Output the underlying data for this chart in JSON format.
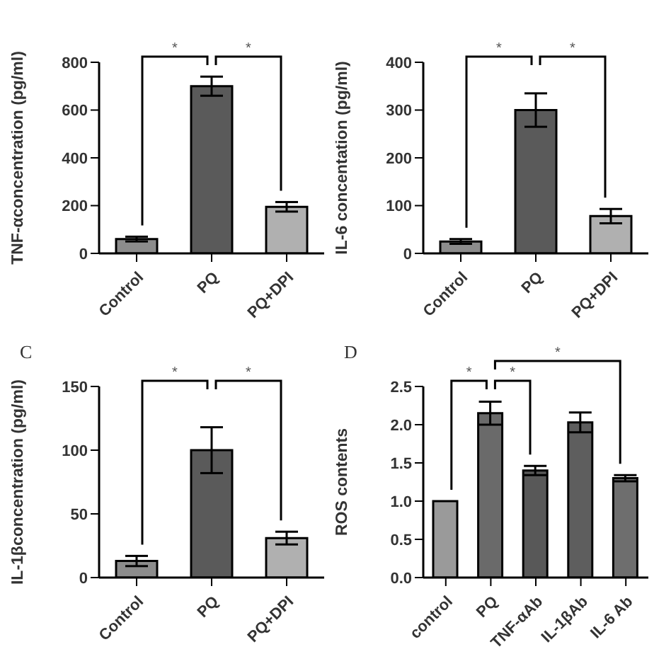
{
  "chart_data": [
    {
      "type": "bar",
      "ylabel": "TNF-αconcentration (pg/ml)",
      "categories": [
        "Control",
        "PQ",
        "PQ+DPI"
      ],
      "values": [
        60,
        700,
        195
      ],
      "errors": [
        10,
        40,
        20
      ],
      "colors": [
        "#8c8c8c",
        "#5a5a5a",
        "#b0b0b0"
      ],
      "ylim": [
        0,
        800
      ],
      "yticks": [
        0,
        200,
        400,
        600,
        800
      ],
      "grid": false,
      "legend": false,
      "annotations": [
        "*",
        "*"
      ]
    },
    {
      "type": "bar",
      "ylabel": "IL-6 concentation (pg/ml)",
      "categories": [
        "Control",
        "PQ",
        "PQ+DPI"
      ],
      "values": [
        25,
        300,
        78
      ],
      "errors": [
        5,
        35,
        15
      ],
      "colors": [
        "#8c8c8c",
        "#5a5a5a",
        "#b0b0b0"
      ],
      "ylim": [
        0,
        400
      ],
      "yticks": [
        0,
        100,
        200,
        300,
        400
      ],
      "grid": false,
      "legend": false,
      "annotations": [
        "*",
        "*"
      ]
    },
    {
      "type": "bar",
      "title": "C",
      "ylabel": "IL-1βconcentration (pg/ml)",
      "categories": [
        "Control",
        "PQ",
        "PQ+DPI"
      ],
      "values": [
        13,
        100,
        31
      ],
      "errors": [
        4,
        18,
        5
      ],
      "colors": [
        "#8c8c8c",
        "#5a5a5a",
        "#b0b0b0"
      ],
      "ylim": [
        0,
        150
      ],
      "yticks": [
        0,
        50,
        100,
        150
      ],
      "grid": false,
      "legend": false,
      "annotations": [
        "*",
        "*"
      ]
    },
    {
      "type": "bar",
      "title": "D",
      "ylabel": "ROS contents",
      "categories": [
        "control",
        "PQ",
        "TNF-αAb",
        "IL-1βAb",
        "IL-6 Ab"
      ],
      "values": [
        1.0,
        2.15,
        1.4,
        2.03,
        1.3
      ],
      "errors": [
        null,
        0.15,
        0.06,
        0.13,
        0.04
      ],
      "colors": [
        "#9a9a9a",
        "#6a6a6a",
        "#585858",
        "#5e5e5e",
        "#6e6e6e"
      ],
      "ylim": [
        0,
        2.5
      ],
      "yticks": [
        {
          "value": 0,
          "label": "0.0"
        },
        {
          "value": 0.5,
          "label": "0.5"
        },
        {
          "value": 1.0,
          "label": "1.0"
        },
        {
          "value": 1.5,
          "label": "1.5"
        },
        {
          "value": 2.0,
          "label": "2.0"
        },
        {
          "value": 2.5,
          "label": "2.5"
        }
      ],
      "grid": false,
      "legend": false,
      "annotations": [
        "*",
        "*",
        "*"
      ]
    }
  ]
}
